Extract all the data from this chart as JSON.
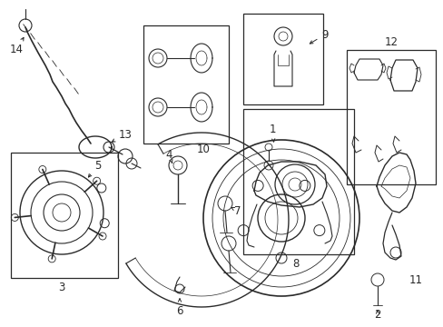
{
  "background_color": "#ffffff",
  "line_color": "#2a2a2a",
  "fig_width": 4.89,
  "fig_height": 3.6,
  "dpi": 100,
  "font_size": 8.5
}
